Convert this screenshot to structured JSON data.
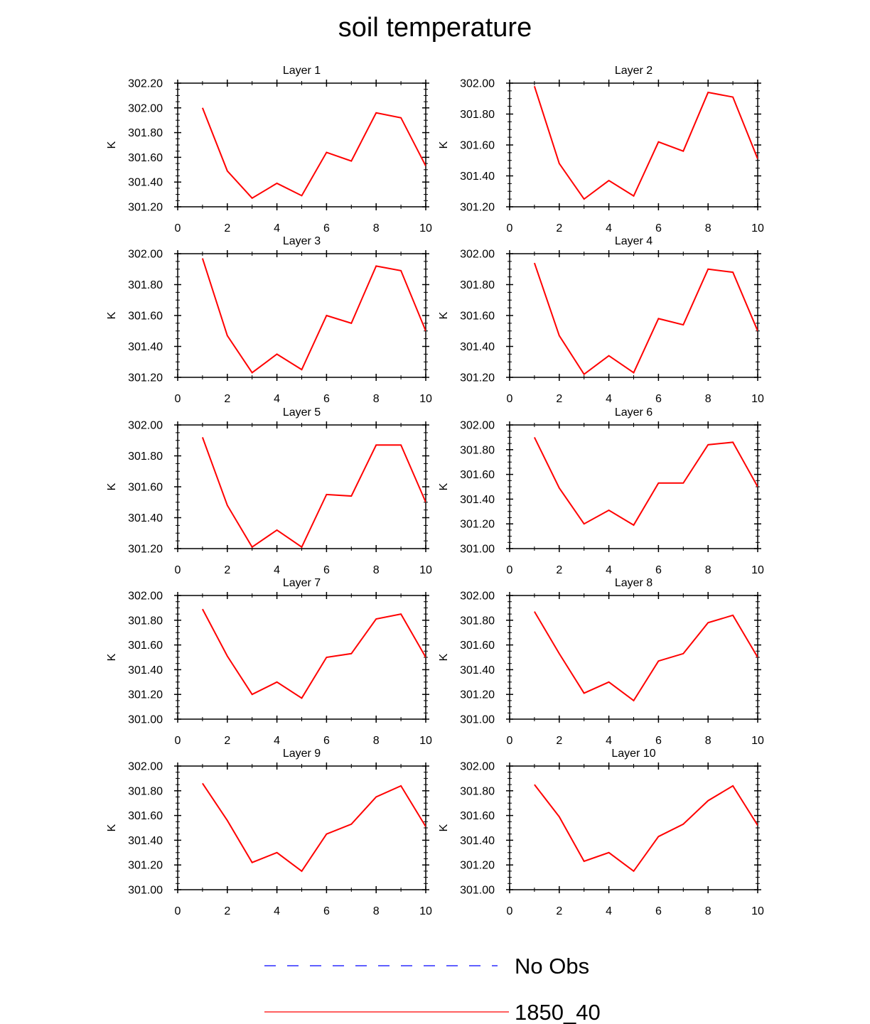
{
  "chart_data": {
    "type": "line",
    "title": "soil temperature",
    "xlim": [
      0,
      10
    ],
    "xticks": [
      0,
      2,
      4,
      6,
      8,
      10
    ],
    "x": [
      1,
      2,
      3,
      4,
      5,
      6,
      7,
      8,
      9,
      10
    ],
    "legend": [
      {
        "label": "No Obs",
        "color": "#0000ff",
        "style": "dashed"
      },
      {
        "label": "1850_40",
        "color": "#ff0000",
        "style": "solid"
      }
    ],
    "panels": [
      {
        "title": "Layer 1",
        "ylabel": "K",
        "ylim": [
          301.2,
          302.2
        ],
        "yticks": [
          "301.20",
          "301.40",
          "301.60",
          "301.80",
          "302.00",
          "302.20"
        ],
        "series": [
          {
            "name": "1850_40",
            "values": [
              302.0,
              301.49,
              301.27,
              301.39,
              301.29,
              301.64,
              301.57,
              301.96,
              301.92,
              301.53
            ]
          }
        ]
      },
      {
        "title": "Layer 2",
        "ylabel": "K",
        "ylim": [
          301.2,
          302.0
        ],
        "yticks": [
          "301.20",
          "301.40",
          "301.60",
          "301.80",
          "302.00"
        ],
        "series": [
          {
            "name": "1850_40",
            "values": [
              301.98,
              301.48,
              301.25,
              301.37,
              301.27,
              301.62,
              301.56,
              301.94,
              301.91,
              301.51
            ]
          }
        ]
      },
      {
        "title": "Layer 3",
        "ylabel": "K",
        "ylim": [
          301.2,
          302.0
        ],
        "yticks": [
          "301.20",
          "301.40",
          "301.60",
          "301.80",
          "302.00"
        ],
        "series": [
          {
            "name": "1850_40",
            "values": [
              301.97,
              301.47,
              301.23,
              301.35,
              301.25,
              301.6,
              301.55,
              301.92,
              301.89,
              301.5
            ]
          }
        ]
      },
      {
        "title": "Layer 4",
        "ylabel": "K",
        "ylim": [
          301.2,
          302.0
        ],
        "yticks": [
          "301.20",
          "301.40",
          "301.60",
          "301.80",
          "302.00"
        ],
        "series": [
          {
            "name": "1850_40",
            "values": [
              301.94,
              301.47,
              301.22,
              301.34,
              301.23,
              301.58,
              301.54,
              301.9,
              301.88,
              301.5
            ]
          }
        ]
      },
      {
        "title": "Layer 5",
        "ylabel": "K",
        "ylim": [
          301.2,
          302.0
        ],
        "yticks": [
          "301.20",
          "301.40",
          "301.60",
          "301.80",
          "302.00"
        ],
        "series": [
          {
            "name": "1850_40",
            "values": [
              301.92,
              301.48,
              301.21,
              301.32,
              301.21,
              301.55,
              301.54,
              301.87,
              301.87,
              301.5
            ]
          }
        ]
      },
      {
        "title": "Layer 6",
        "ylabel": "K",
        "ylim": [
          301.0,
          302.0
        ],
        "yticks": [
          "301.00",
          "301.20",
          "301.40",
          "301.60",
          "301.80",
          "302.00"
        ],
        "series": [
          {
            "name": "1850_40",
            "values": [
              301.9,
              301.49,
              301.2,
              301.31,
              301.19,
              301.53,
              301.53,
              301.84,
              301.86,
              301.5
            ]
          }
        ]
      },
      {
        "title": "Layer 7",
        "ylabel": "K",
        "ylim": [
          301.0,
          302.0
        ],
        "yticks": [
          "301.00",
          "301.20",
          "301.40",
          "301.60",
          "301.80",
          "302.00"
        ],
        "series": [
          {
            "name": "1850_40",
            "values": [
              301.89,
              301.51,
              301.2,
              301.3,
              301.17,
              301.5,
              301.53,
              301.81,
              301.85,
              301.5
            ]
          }
        ]
      },
      {
        "title": "Layer 8",
        "ylabel": "K",
        "ylim": [
          301.0,
          302.0
        ],
        "yticks": [
          "301.00",
          "301.20",
          "301.40",
          "301.60",
          "301.80",
          "302.00"
        ],
        "series": [
          {
            "name": "1850_40",
            "values": [
              301.87,
              301.53,
              301.21,
              301.3,
              301.15,
              301.47,
              301.53,
              301.78,
              301.84,
              301.5
            ]
          }
        ]
      },
      {
        "title": "Layer 9",
        "ylabel": "K",
        "ylim": [
          301.0,
          302.0
        ],
        "yticks": [
          "301.00",
          "301.20",
          "301.40",
          "301.60",
          "301.80",
          "302.00"
        ],
        "series": [
          {
            "name": "1850_40",
            "values": [
              301.86,
              301.56,
              301.22,
              301.3,
              301.15,
              301.45,
              301.53,
              301.75,
              301.84,
              301.51
            ]
          }
        ]
      },
      {
        "title": "Layer 10",
        "ylabel": "K",
        "ylim": [
          301.0,
          302.0
        ],
        "yticks": [
          "301.00",
          "301.20",
          "301.40",
          "301.60",
          "301.80",
          "302.00"
        ],
        "series": [
          {
            "name": "1850_40",
            "values": [
              301.85,
              301.59,
              301.23,
              301.3,
              301.15,
              301.43,
              301.53,
              301.72,
              301.84,
              301.52
            ]
          }
        ]
      }
    ]
  },
  "colors": {
    "series_line": "#ff0000",
    "no_obs_line": "#0000ff",
    "axes": "#000000"
  }
}
